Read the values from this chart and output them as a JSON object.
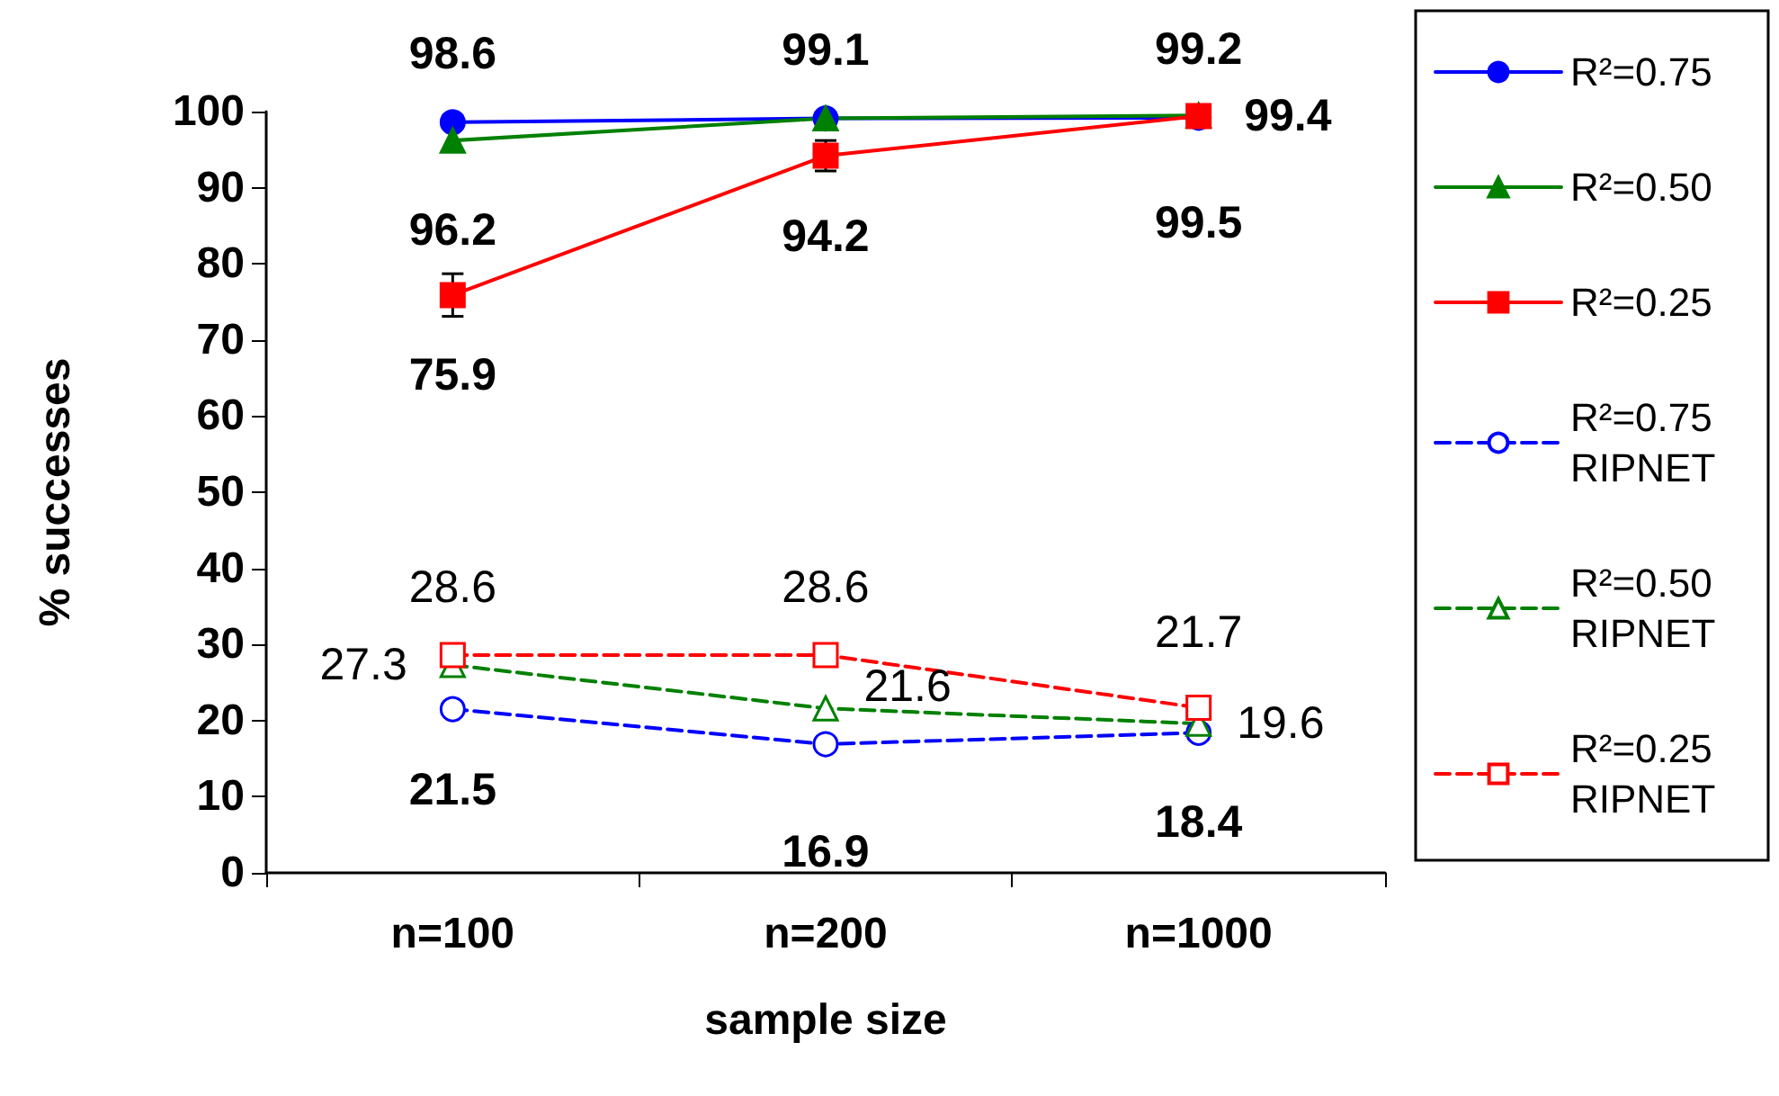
{
  "chart_data": {
    "type": "line",
    "xlabel": "sample size",
    "ylabel": "% successes",
    "categories": [
      "n=100",
      "n=200",
      "n=1000"
    ],
    "series": [
      {
        "name": "R²=0.75",
        "color": "#0000ff",
        "values": [
          98.6,
          99.1,
          99.2
        ],
        "marker": "circle",
        "line_style": "solid",
        "value_labels": [
          "98.6",
          "99.1",
          "99.2"
        ]
      },
      {
        "name": "R²=0.50",
        "color": "#008000",
        "values": [
          96.2,
          99.1,
          99.5
        ],
        "marker": "triangle",
        "line_style": "solid",
        "value_labels": [
          "96.2",
          null,
          "99.5"
        ]
      },
      {
        "name": "R²=0.25",
        "color": "#ff0000",
        "values": [
          75.9,
          94.2,
          99.4
        ],
        "marker": "square",
        "line_style": "solid",
        "errors": [
          2.8,
          2,
          null
        ],
        "value_labels": [
          "75.9",
          "94.2",
          "99.4"
        ]
      },
      {
        "name": "R²=0.75 RIPNET",
        "color": "#0000ff",
        "values": [
          21.5,
          16.9,
          18.4
        ],
        "marker": "circle",
        "line_style": "dashed",
        "value_labels": [
          "21.5",
          "16.9",
          "18.4"
        ]
      },
      {
        "name": "R²=0.50 RIPNET",
        "color": "#008000",
        "values": [
          27.3,
          21.6,
          19.6
        ],
        "marker": "triangle",
        "line_style": "dashed",
        "value_labels": [
          "27.3",
          "21.6",
          "19.6"
        ]
      },
      {
        "name": "R²=0.25 RIPNET",
        "color": "#ff0000",
        "values": [
          28.6,
          28.6,
          21.7
        ],
        "marker": "square",
        "line_style": "dashed",
        "value_labels": [
          "28.6",
          "28.6",
          "21.7"
        ]
      }
    ],
    "ylim": [
      0,
      100
    ],
    "yticks": [
      0,
      10,
      20,
      30,
      40,
      50,
      60,
      70,
      80,
      90,
      100
    ],
    "grid": false,
    "legend": "right"
  }
}
